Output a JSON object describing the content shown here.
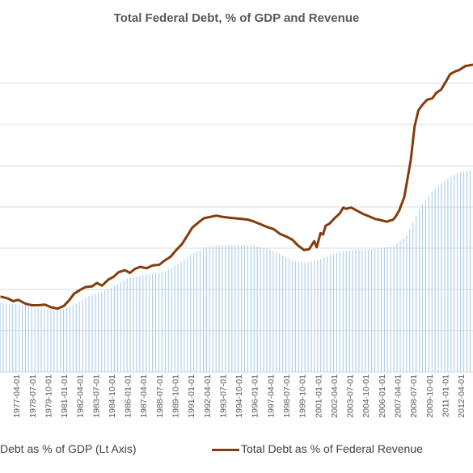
{
  "chart_data": {
    "type": "bar+line",
    "title": "Total Federal Debt, % of GDP and Revenue",
    "xlabel": "",
    "ylabel": "",
    "x_ticks": [
      "1977-04-01",
      "1978-07-01",
      "1979-10-01",
      "1981-01-01",
      "1982-04-01",
      "1983-07-01",
      "1984-10-01",
      "1986-01-01",
      "1987-04-01",
      "1988-07-01",
      "1989-10-01",
      "1991-01-01",
      "1992-04-01",
      "1993-07-01",
      "1994-10-01",
      "1996-01-01",
      "1997-04-01",
      "1998-07-01",
      "1999-10-01",
      "2001-01-01",
      "2002-04-01",
      "2003-07-01",
      "2004-10-01",
      "2006-01-01",
      "2007-04-01",
      "2008-07-01",
      "2009-10-01",
      "2011-01-01",
      "2012-04-01"
    ],
    "grid": true,
    "legend_position": "bottom",
    "series": [
      {
        "name": "Debt as % of GDP (Lt Axis)",
        "kind": "bar",
        "color": "#9dc3e6",
        "x": [
          1976.0,
          1977.0,
          1978.0,
          1979.0,
          1980.0,
          1981.0,
          1982.0,
          1983.0,
          1984.0,
          1985.0,
          1986.0,
          1987.0,
          1988.0,
          1989.0,
          1990.0,
          1991.0,
          1992.0,
          1993.0,
          1994.0,
          1995.0,
          1996.0,
          1997.0,
          1998.0,
          1999.0,
          2000.0,
          2001.0,
          2002.0,
          2003.0,
          2004.0,
          2005.0,
          2006.0,
          2007.0,
          2008.0,
          2009.0,
          2010.0,
          2011.0,
          2012.0,
          2013.2
        ],
        "values": [
          34.2,
          33.6,
          33.0,
          31.5,
          31.2,
          30.9,
          33.9,
          37.8,
          39.6,
          42.6,
          46.2,
          47.7,
          48.6,
          49.8,
          53.4,
          58.2,
          61.2,
          62.7,
          62.7,
          62.7,
          62.4,
          60.9,
          58.5,
          54.9,
          54.0,
          55.2,
          57.9,
          59.7,
          60.6,
          60.6,
          61.2,
          62.4,
          67.8,
          81.0,
          89.4,
          94.8,
          98.4,
          100.2
        ]
      },
      {
        "name": "Total Debt as % of Federal Revenue",
        "kind": "line",
        "color": "#843c0c",
        "x": [
          1976.0,
          1976.6,
          1977.0,
          1977.4,
          1978.0,
          1978.5,
          1979.0,
          1979.5,
          1980.0,
          1980.5,
          1981.0,
          1981.4,
          1981.8,
          1982.3,
          1982.7,
          1983.2,
          1983.6,
          1984.0,
          1984.5,
          1984.9,
          1985.3,
          1985.8,
          1986.2,
          1986.6,
          1987.0,
          1987.5,
          1988.0,
          1988.5,
          1988.9,
          1989.4,
          1989.8,
          1990.3,
          1990.7,
          1991.1,
          1991.6,
          1992.0,
          1992.5,
          1993.0,
          1993.5,
          1994.0,
          1994.5,
          1995.0,
          1995.5,
          1996.0,
          1996.5,
          1997.0,
          1997.5,
          1998.0,
          1998.5,
          1999.0,
          1999.4,
          1999.9,
          2000.3,
          2000.7,
          2000.9,
          2001.2,
          2001.4,
          2001.6,
          2001.9,
          2002.3,
          2002.7,
          2003.0,
          2003.2,
          2003.6,
          2004.1,
          2004.5,
          2005.0,
          2005.5,
          2006.0,
          2006.4,
          2006.9,
          2007.1,
          2007.4,
          2007.8,
          2008.3,
          2008.6,
          2008.9,
          2009.2,
          2009.6,
          2010.0,
          2010.3,
          2010.7,
          2011.1,
          2011.4,
          2011.8,
          2012.1,
          2012.6,
          2013.2
        ],
        "values": [
          74,
          72.5,
          70.5,
          71.5,
          68.5,
          67.5,
          67.5,
          68,
          66,
          65,
          67,
          71,
          76,
          79,
          81,
          81.5,
          84,
          82,
          86.5,
          88.5,
          92,
          93.5,
          91.5,
          94.5,
          96,
          95,
          97,
          97.5,
          100.5,
          103.5,
          108,
          113,
          119,
          125,
          129,
          132,
          133,
          134,
          133,
          132.5,
          132,
          131.5,
          131,
          129.5,
          127.5,
          125.5,
          124,
          120.5,
          118.5,
          116,
          112,
          108.5,
          109,
          115,
          110.5,
          121,
          120,
          126.5,
          128,
          132,
          135.5,
          140,
          139,
          140,
          137.5,
          135.5,
          133.5,
          131.5,
          130.5,
          129.5,
          131,
          133,
          138,
          148,
          175,
          200,
          212,
          216,
          220,
          221,
          225,
          227.5,
          234,
          239,
          241,
          242,
          245,
          246
        ]
      }
    ]
  }
}
